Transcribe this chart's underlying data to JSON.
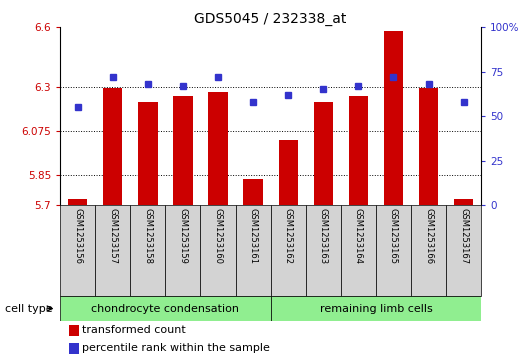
{
  "title": "GDS5045 / 232338_at",
  "samples": [
    "GSM1253156",
    "GSM1253157",
    "GSM1253158",
    "GSM1253159",
    "GSM1253160",
    "GSM1253161",
    "GSM1253162",
    "GSM1253163",
    "GSM1253164",
    "GSM1253165",
    "GSM1253166",
    "GSM1253167"
  ],
  "transformed_count": [
    5.73,
    6.29,
    6.22,
    6.25,
    6.27,
    5.83,
    6.03,
    6.22,
    6.25,
    6.58,
    6.29,
    5.73
  ],
  "percentile_rank": [
    55,
    72,
    68,
    67,
    72,
    58,
    62,
    65,
    67,
    72,
    68,
    58
  ],
  "ylim_left": [
    5.7,
    6.6
  ],
  "ylim_right": [
    0,
    100
  ],
  "yticks_left": [
    5.7,
    5.85,
    6.075,
    6.3,
    6.6
  ],
  "yticks_right": [
    0,
    25,
    50,
    75,
    100
  ],
  "ytick_labels_left": [
    "5.7",
    "5.85",
    "6.075",
    "6.3",
    "6.6"
  ],
  "ytick_labels_right": [
    "0",
    "25",
    "50",
    "75",
    "100%"
  ],
  "bar_color": "#cc0000",
  "dot_color": "#3333cc",
  "group1_label": "chondrocyte condensation",
  "group2_label": "remaining limb cells",
  "group1_indices": [
    0,
    1,
    2,
    3,
    4,
    5
  ],
  "group2_indices": [
    6,
    7,
    8,
    9,
    10,
    11
  ],
  "cell_type_label": "cell type",
  "legend1": "transformed count",
  "legend2": "percentile rank within the sample",
  "group1_color": "#90ee90",
  "group2_color": "#90ee90",
  "sample_bg_color": "#d3d3d3",
  "bar_bottom": 5.7,
  "grid_color": "black",
  "bar_width": 0.55,
  "dot_size": 5,
  "title_fontsize": 10,
  "tick_fontsize": 7.5,
  "sample_fontsize": 6,
  "group_fontsize": 8,
  "legend_fontsize": 8
}
